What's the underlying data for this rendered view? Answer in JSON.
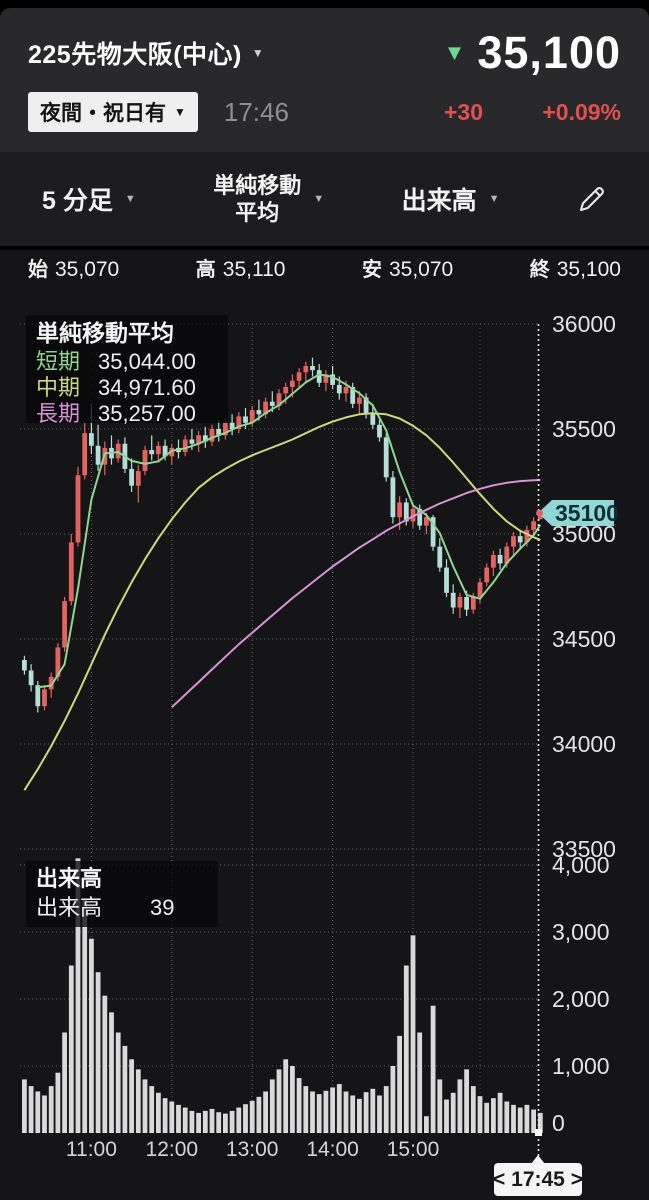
{
  "header": {
    "symbol": "225先物大阪(中心)",
    "symbol_caret": "▼",
    "direction_arrow": "▼",
    "price": "35,100",
    "session_badge": "夜間・祝日有",
    "badge_caret": "▼",
    "time": "17:46",
    "change": "+30",
    "change_pct": "+0.09%"
  },
  "toolbar": {
    "timeframe": "5 分足",
    "indicator_line1": "単純移動",
    "indicator_line2": "平均",
    "overlay": "出来高",
    "caret": "▼"
  },
  "ohlc": {
    "open_label": "始",
    "open": "35,070",
    "high_label": "高",
    "high": "35,110",
    "low_label": "安",
    "low": "35,070",
    "close_label": "終",
    "close": "35,100"
  },
  "colors": {
    "up": "#e4625f",
    "down": "#b5ded6",
    "volume": "#d9d9d9",
    "sma_short": "#8fd694",
    "sma_mid": "#ccd97c",
    "sma_long": "#d993d6",
    "tag_bg": "#8fd8d5",
    "tag_text": "#0e2e33",
    "red": "#e0514d",
    "green": "#6fd695",
    "grid": "#686868",
    "axis_text": "#e3e3e3",
    "time_text": "#d6d6d6"
  },
  "chart_data": {
    "type": "candlestick+volume",
    "interval": "5min",
    "price_axis": {
      "min": 33500,
      "max": 36000,
      "ticks": [
        {
          "v": 36000,
          "label": "36000"
        },
        {
          "v": 35500,
          "label": "35500"
        },
        {
          "v": 35000,
          "label": "35000"
        },
        {
          "v": 34500,
          "label": "34500"
        },
        {
          "v": 34000,
          "label": "34000"
        },
        {
          "v": 33500,
          "label": "33500"
        }
      ]
    },
    "volume_axis": {
      "min": 0,
      "max": 4000,
      "ticks": [
        {
          "v": 4000,
          "label": "4,000"
        },
        {
          "v": 3000,
          "label": "3,000"
        },
        {
          "v": 2000,
          "label": "2,000"
        },
        {
          "v": 1000,
          "label": "1,000"
        },
        {
          "v": 0,
          "label": "0"
        }
      ]
    },
    "x_ticks": [
      {
        "idx": 10,
        "label": "11:00"
      },
      {
        "idx": 22,
        "label": "12:00"
      },
      {
        "idx": 34,
        "label": "13:00"
      },
      {
        "idx": 46,
        "label": "14:00"
      },
      {
        "idx": 58,
        "label": "15:00"
      }
    ],
    "extra_vline_idx": 68,
    "candles": [
      [
        34400,
        34420,
        34330,
        34350
      ],
      [
        34350,
        34380,
        34250,
        34280
      ],
      [
        34280,
        34300,
        34150,
        34180
      ],
      [
        34180,
        34280,
        34160,
        34260
      ],
      [
        34260,
        34340,
        34220,
        34320
      ],
      [
        34320,
        34480,
        34300,
        34460
      ],
      [
        34460,
        34700,
        34440,
        34680
      ],
      [
        34680,
        35000,
        34660,
        34960
      ],
      [
        34960,
        35320,
        34940,
        35280
      ],
      [
        35280,
        35530,
        35260,
        35480
      ],
      [
        35480,
        35620,
        35380,
        35420
      ],
      [
        35420,
        35520,
        35300,
        35330
      ],
      [
        35330,
        35440,
        35280,
        35410
      ],
      [
        35410,
        35470,
        35330,
        35360
      ],
      [
        35360,
        35450,
        35340,
        35430
      ],
      [
        35430,
        35460,
        35290,
        35310
      ],
      [
        35310,
        35360,
        35200,
        35230
      ],
      [
        35230,
        35330,
        35150,
        35300
      ],
      [
        35300,
        35420,
        35280,
        35400
      ],
      [
        35400,
        35470,
        35350,
        35380
      ],
      [
        35380,
        35440,
        35340,
        35420
      ],
      [
        35420,
        35450,
        35350,
        35370
      ],
      [
        35370,
        35430,
        35330,
        35410
      ],
      [
        35410,
        35450,
        35360,
        35390
      ],
      [
        35390,
        35470,
        35370,
        35450
      ],
      [
        35450,
        35500,
        35400,
        35430
      ],
      [
        35430,
        35490,
        35390,
        35470
      ],
      [
        35470,
        35510,
        35410,
        35440
      ],
      [
        35440,
        35520,
        35420,
        35500
      ],
      [
        35500,
        35540,
        35440,
        35470
      ],
      [
        35470,
        35550,
        35450,
        35530
      ],
      [
        35530,
        35570,
        35470,
        35500
      ],
      [
        35500,
        35580,
        35480,
        35560
      ],
      [
        35560,
        35600,
        35500,
        35530
      ],
      [
        35530,
        35610,
        35510,
        35590
      ],
      [
        35590,
        35640,
        35540,
        35570
      ],
      [
        35570,
        35650,
        35550,
        35630
      ],
      [
        35630,
        35680,
        35580,
        35610
      ],
      [
        35610,
        35690,
        35590,
        35670
      ],
      [
        35670,
        35720,
        35620,
        35700
      ],
      [
        35700,
        35760,
        35650,
        35730
      ],
      [
        35730,
        35790,
        35690,
        35770
      ],
      [
        35770,
        35820,
        35720,
        35800
      ],
      [
        35800,
        35840,
        35750,
        35780
      ],
      [
        35780,
        35810,
        35700,
        35720
      ],
      [
        35720,
        35780,
        35680,
        35760
      ],
      [
        35760,
        35800,
        35690,
        35710
      ],
      [
        35710,
        35750,
        35640,
        35670
      ],
      [
        35670,
        35730,
        35630,
        35700
      ],
      [
        35700,
        35720,
        35600,
        35620
      ],
      [
        35620,
        35680,
        35570,
        35650
      ],
      [
        35650,
        35670,
        35550,
        35570
      ],
      [
        35570,
        35620,
        35500,
        35520
      ],
      [
        35520,
        35560,
        35440,
        35460
      ],
      [
        35460,
        35480,
        35250,
        35270
      ],
      [
        35270,
        35300,
        35050,
        35080
      ],
      [
        35080,
        35180,
        35020,
        35150
      ],
      [
        35150,
        35170,
        35040,
        35060
      ],
      [
        35060,
        35150,
        35030,
        35120
      ],
      [
        35120,
        35140,
        35020,
        35040
      ],
      [
        35040,
        35100,
        35000,
        35080
      ],
      [
        35080,
        35090,
        34920,
        34940
      ],
      [
        34940,
        34980,
        34820,
        34840
      ],
      [
        34840,
        34880,
        34700,
        34720
      ],
      [
        34720,
        34760,
        34620,
        34650
      ],
      [
        34650,
        34720,
        34600,
        34700
      ],
      [
        34700,
        34730,
        34610,
        34640
      ],
      [
        34640,
        34720,
        34620,
        34700
      ],
      [
        34700,
        34790,
        34670,
        34770
      ],
      [
        34770,
        34860,
        34750,
        34840
      ],
      [
        34840,
        34920,
        34800,
        34900
      ],
      [
        34900,
        34930,
        34830,
        34860
      ],
      [
        34860,
        34960,
        34840,
        34940
      ],
      [
        34940,
        35010,
        34900,
        34990
      ],
      [
        34990,
        35020,
        34930,
        34960
      ],
      [
        34960,
        35040,
        34940,
        35020
      ],
      [
        35020,
        35080,
        34990,
        35060
      ],
      [
        35070,
        35110,
        35070,
        35100
      ]
    ],
    "volumes": [
      800,
      700,
      620,
      560,
      700,
      900,
      1500,
      2500,
      4100,
      3500,
      2900,
      2400,
      2050,
      1800,
      1500,
      1300,
      1100,
      950,
      800,
      700,
      600,
      520,
      470,
      420,
      380,
      330,
      300,
      330,
      360,
      310,
      290,
      330,
      380,
      430,
      480,
      540,
      620,
      800,
      950,
      1100,
      1000,
      820,
      700,
      620,
      580,
      630,
      680,
      730,
      620,
      560,
      510,
      610,
      660,
      560,
      700,
      1000,
      1450,
      2500,
      2950,
      1500,
      250,
      1900,
      800,
      500,
      600,
      800,
      950,
      700,
      550,
      450,
      520,
      600,
      470,
      420,
      380,
      420,
      350,
      300
    ],
    "sma_lines": [
      {
        "key": "sma_short",
        "points": [
          [
            2,
            34270
          ],
          [
            4,
            34278
          ],
          [
            6,
            34380
          ],
          [
            8,
            34740
          ],
          [
            10,
            35164
          ],
          [
            12,
            35384
          ],
          [
            14,
            35390
          ],
          [
            16,
            35348
          ],
          [
            18,
            35334
          ],
          [
            20,
            35346
          ],
          [
            22,
            35396
          ],
          [
            24,
            35408
          ],
          [
            26,
            35430
          ],
          [
            28,
            35458
          ],
          [
            30,
            35482
          ],
          [
            32,
            35512
          ],
          [
            34,
            35530
          ],
          [
            36,
            35576
          ],
          [
            38,
            35614
          ],
          [
            40,
            35668
          ],
          [
            42,
            35722
          ],
          [
            44,
            35760
          ],
          [
            46,
            35748
          ],
          [
            48,
            35712
          ],
          [
            50,
            35670
          ],
          [
            52,
            35612
          ],
          [
            54,
            35494
          ],
          [
            56,
            35296
          ],
          [
            58,
            35136
          ],
          [
            60,
            35090
          ],
          [
            62,
            35004
          ],
          [
            64,
            34846
          ],
          [
            66,
            34710
          ],
          [
            68,
            34692
          ],
          [
            70,
            34770
          ],
          [
            72,
            34862
          ],
          [
            74,
            34930
          ],
          [
            76,
            34994
          ],
          [
            77,
            35044
          ]
        ]
      },
      {
        "key": "sma_mid",
        "points": [
          [
            0,
            33780
          ],
          [
            2,
            33880
          ],
          [
            4,
            33990
          ],
          [
            6,
            34110
          ],
          [
            8,
            34240
          ],
          [
            10,
            34380
          ],
          [
            12,
            34520
          ],
          [
            14,
            34650
          ],
          [
            16,
            34770
          ],
          [
            18,
            34880
          ],
          [
            20,
            34980
          ],
          [
            22,
            35070
          ],
          [
            24,
            35150
          ],
          [
            26,
            35220
          ],
          [
            28,
            35270
          ],
          [
            30,
            35310
          ],
          [
            32,
            35345
          ],
          [
            34,
            35375
          ],
          [
            36,
            35400
          ],
          [
            38,
            35425
          ],
          [
            40,
            35450
          ],
          [
            42,
            35480
          ],
          [
            44,
            35510
          ],
          [
            46,
            35535
          ],
          [
            48,
            35555
          ],
          [
            50,
            35570
          ],
          [
            52,
            35575
          ],
          [
            54,
            35570
          ],
          [
            56,
            35550
          ],
          [
            58,
            35515
          ],
          [
            60,
            35470
          ],
          [
            62,
            35410
          ],
          [
            64,
            35340
          ],
          [
            66,
            35265
          ],
          [
            68,
            35190
          ],
          [
            70,
            35120
          ],
          [
            72,
            35060
          ],
          [
            74,
            35015
          ],
          [
            76,
            34985
          ],
          [
            77,
            34972
          ]
        ]
      },
      {
        "key": "sma_long",
        "points": [
          [
            22,
            34175
          ],
          [
            24,
            34235
          ],
          [
            26,
            34295
          ],
          [
            28,
            34355
          ],
          [
            30,
            34415
          ],
          [
            32,
            34475
          ],
          [
            34,
            34530
          ],
          [
            36,
            34585
          ],
          [
            38,
            34640
          ],
          [
            40,
            34695
          ],
          [
            42,
            34745
          ],
          [
            44,
            34795
          ],
          [
            46,
            34845
          ],
          [
            48,
            34890
          ],
          [
            50,
            34935
          ],
          [
            52,
            34975
          ],
          [
            54,
            35015
          ],
          [
            56,
            35050
          ],
          [
            58,
            35085
          ],
          [
            60,
            35115
          ],
          [
            62,
            35145
          ],
          [
            64,
            35170
          ],
          [
            66,
            35195
          ],
          [
            68,
            35215
          ],
          [
            70,
            35232
          ],
          [
            72,
            35244
          ],
          [
            74,
            35252
          ],
          [
            76,
            35256
          ],
          [
            77,
            35257
          ]
        ]
      }
    ],
    "sma_legend": {
      "title": "単純移動平均",
      "rows": [
        {
          "label": "短期",
          "value": "35,044.00",
          "color": "sma_short"
        },
        {
          "label": "中期",
          "value": "34,971.60",
          "color": "sma_mid"
        },
        {
          "label": "長期",
          "value": "35,257.00",
          "color": "sma_long"
        }
      ]
    },
    "volume_legend": {
      "title": "出来高",
      "row_label": "出来高",
      "row_value": "39"
    },
    "last_price_tag": "35100",
    "time_cursor": {
      "prev": "<",
      "label": "17:45",
      "next": ">"
    }
  }
}
